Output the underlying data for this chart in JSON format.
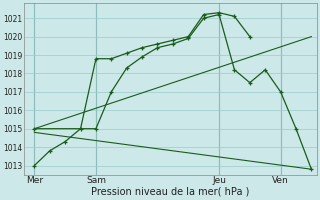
{
  "bg_color": "#cce8e8",
  "grid_color": "#99cccc",
  "line_color": "#1a5c1a",
  "xlabel": "Pression niveau de la mer( hPa )",
  "ylim_min": 1012.5,
  "ylim_max": 1021.8,
  "yticks": [
    1013,
    1014,
    1015,
    1016,
    1017,
    1018,
    1019,
    1020,
    1021
  ],
  "xtick_labels": [
    "Mer",
    "Sam",
    "Jeu",
    "Ven"
  ],
  "xtick_positions": [
    0,
    24,
    72,
    96
  ],
  "xlim_min": -4,
  "xlim_max": 110,
  "series1_x": [
    0,
    6,
    12,
    18,
    24,
    30,
    36,
    42,
    48,
    54,
    60,
    66,
    72,
    78,
    84
  ],
  "series1_y": [
    1013.0,
    1013.8,
    1014.3,
    1015.0,
    1018.8,
    1018.8,
    1019.1,
    1019.4,
    1019.6,
    1019.8,
    1020.0,
    1021.2,
    1021.3,
    1021.1,
    1020.0
  ],
  "series2_x": [
    0,
    24,
    30,
    36,
    42,
    48,
    54,
    60,
    66,
    72,
    78,
    84,
    90,
    96,
    102,
    108
  ],
  "series2_y": [
    1015.0,
    1015.0,
    1017.0,
    1018.3,
    1018.9,
    1019.4,
    1019.6,
    1019.9,
    1021.0,
    1021.2,
    1018.2,
    1017.5,
    1018.2,
    1017.0,
    1015.0,
    1012.8
  ],
  "series3_x": [
    0,
    108
  ],
  "series3_y": [
    1015.0,
    1020.0
  ],
  "series4_x": [
    0,
    108
  ],
  "series4_y": [
    1014.8,
    1012.8
  ],
  "vline_positions": [
    0,
    24,
    72,
    96
  ],
  "figsize": [
    3.2,
    2.0
  ],
  "dpi": 100
}
